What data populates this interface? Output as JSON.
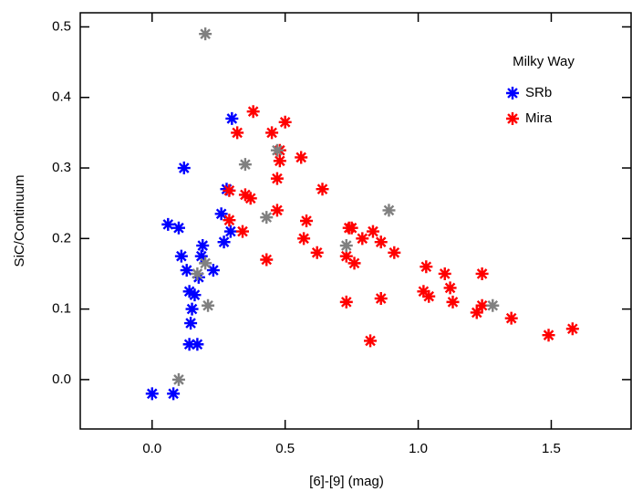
{
  "chart_data": {
    "type": "scatter",
    "x_label": "[6]-[9] (mag)",
    "y_label": "SiC/Continuum",
    "legend_title": "Milky Way",
    "legend": "upper right",
    "xlim": [
      -0.27,
      1.8
    ],
    "ylim": [
      -0.07,
      0.52
    ],
    "xticks": [
      {
        "value": 0,
        "label": "0.0"
      },
      0.5,
      {
        "value": 1,
        "label": "1.0"
      },
      1.5
    ],
    "yticks": [
      {
        "value": 0,
        "label": "0.0"
      },
      0.1,
      0.2,
      0.3,
      0.4,
      0.5
    ],
    "series": [
      {
        "name": "SRb",
        "color": "#0000ff",
        "x": [
          0.0,
          0.08,
          0.06,
          0.1,
          0.12,
          0.11,
          0.13,
          0.14,
          0.16,
          0.15,
          0.145,
          0.14,
          0.17,
          0.19,
          0.185,
          0.23,
          0.26,
          0.27,
          0.28,
          0.3,
          0.295,
          0.175
        ],
        "values": [
          -0.02,
          -0.02,
          0.22,
          0.215,
          0.3,
          0.175,
          0.155,
          0.125,
          0.12,
          0.1,
          0.08,
          0.05,
          0.05,
          0.19,
          0.175,
          0.155,
          0.235,
          0.195,
          0.27,
          0.37,
          0.21,
          0.145
        ]
      },
      {
        "name": "Mira",
        "color": "#ff0000",
        "x": [
          0.38,
          0.32,
          0.5,
          0.45,
          0.48,
          0.56,
          0.48,
          0.47,
          0.64,
          0.29,
          0.35,
          0.37,
          0.29,
          0.47,
          0.58,
          0.34,
          0.57,
          0.62,
          0.43,
          0.74,
          0.75,
          0.79,
          0.83,
          0.86,
          0.91,
          0.73,
          0.76,
          0.73,
          0.86,
          0.82,
          1.03,
          1.1,
          1.12,
          1.24,
          1.02,
          1.04,
          1.13,
          1.24,
          1.22,
          1.35,
          1.49,
          1.58
        ],
        "values": [
          0.38,
          0.35,
          0.365,
          0.35,
          0.325,
          0.315,
          0.31,
          0.285,
          0.27,
          0.268,
          0.262,
          0.257,
          0.226,
          0.24,
          0.225,
          0.21,
          0.2,
          0.18,
          0.17,
          0.215,
          0.215,
          0.2,
          0.21,
          0.195,
          0.18,
          0.175,
          0.165,
          0.11,
          0.115,
          0.055,
          0.16,
          0.15,
          0.13,
          0.15,
          0.125,
          0.118,
          0.11,
          0.105,
          0.095,
          0.087,
          0.063,
          0.072
        ]
      },
      {
        "color": "#808080",
        "x": [
          0.2,
          0.35,
          0.43,
          0.47,
          0.89,
          0.73,
          1.28,
          0.1,
          0.21,
          0.17,
          0.2
        ],
        "values": [
          0.49,
          0.305,
          0.23,
          0.325,
          0.24,
          0.19,
          0.105,
          0.0,
          0.105,
          0.15,
          0.165
        ]
      }
    ]
  }
}
